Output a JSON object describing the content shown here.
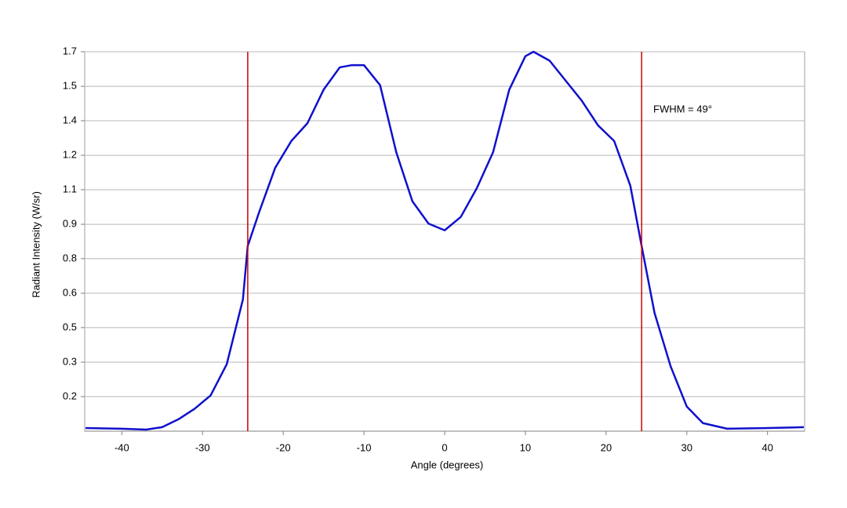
{
  "chart_data": {
    "type": "line",
    "x_label": "Angle (degrees)",
    "y_label": "Radiant Intensity (W/sr)",
    "annotations": [
      "FWHM = 49°"
    ],
    "x": [
      -44.5,
      -40,
      -37,
      -35,
      -33,
      -31,
      -29,
      -27,
      -25,
      -24.4,
      -23,
      -21,
      -19,
      -17,
      -15,
      -13,
      -11.5,
      -10,
      -8,
      -6,
      -4,
      -2,
      0,
      2,
      4,
      6,
      8,
      10,
      11,
      13,
      15,
      17,
      19,
      21,
      23,
      24.4,
      26,
      28,
      30,
      32,
      35,
      40,
      44.5
    ],
    "series": [
      {
        "color": "#1010cc",
        "values": [
          0.014,
          0.011,
          0.007,
          0.018,
          0.053,
          0.1,
          0.16,
          0.3,
          0.59,
          0.83,
          0.98,
          1.18,
          1.3,
          1.38,
          1.53,
          1.63,
          1.64,
          1.64,
          1.55,
          1.25,
          1.03,
          0.93,
          0.9,
          0.96,
          1.09,
          1.25,
          1.53,
          1.68,
          1.7,
          1.66,
          1.57,
          1.48,
          1.37,
          1.3,
          1.1,
          0.83,
          0.53,
          0.29,
          0.11,
          0.036,
          0.011,
          0.014,
          0.018
        ]
      }
    ],
    "vlines": [
      -24.4,
      24.4
    ],
    "vline_color": "#cc0000",
    "xlim": [
      -44.6,
      44.6
    ],
    "xticks": [
      -40,
      -30,
      -20,
      -10,
      0,
      10,
      20,
      30,
      40
    ],
    "ylim": [
      0,
      1.7
    ],
    "yticks": [
      {
        "value": 0.155,
        "label": "0.2"
      },
      {
        "value": 0.309,
        "label": "0.3"
      },
      {
        "value": 0.464,
        "label": "0.5"
      },
      {
        "value": 0.618,
        "label": "0.6"
      },
      {
        "value": 0.773,
        "label": "0.8"
      },
      {
        "value": 0.927,
        "label": "0.9"
      },
      {
        "value": 1.082,
        "label": "1.1"
      },
      {
        "value": 1.236,
        "label": "1.2"
      },
      {
        "value": 1.391,
        "label": "1.4"
      },
      {
        "value": 1.545,
        "label": "1.5"
      },
      1.7
    ],
    "grid": true
  }
}
